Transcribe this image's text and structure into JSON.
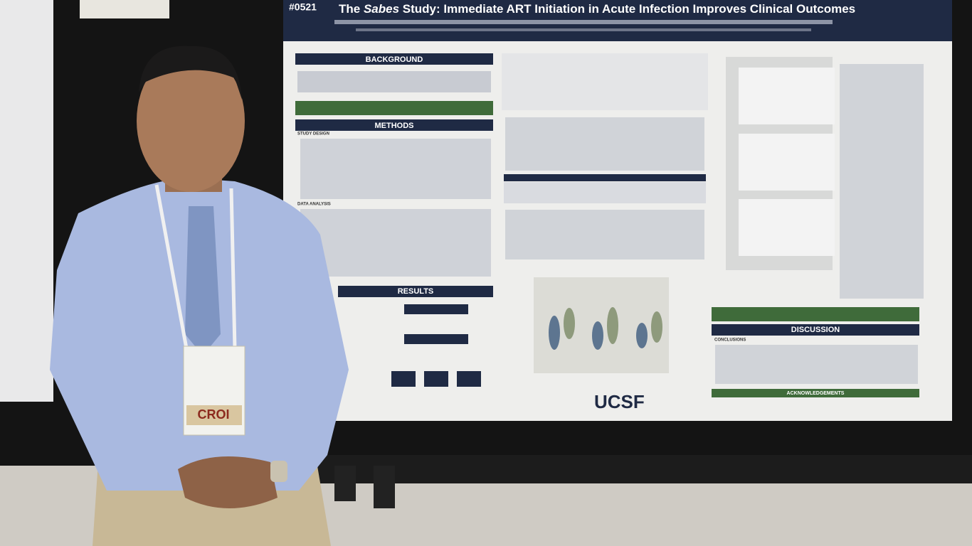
{
  "poster": {
    "number": "#0521",
    "title_parts": [
      "The ",
      "Sabes",
      " Study: Immediate ART Initiation in Acute Infection Improves Clinical Outcomes"
    ],
    "sections": [
      "BACKGROUND",
      "METHODS",
      "RESULTS",
      "DISCUSSION",
      "CONCLUSIONS",
      "ACKNOWLEDGEMENTS"
    ],
    "subheads": [
      "STUDY DESIGN",
      "DATA ANALYSIS"
    ],
    "logos": [
      "UCSF"
    ]
  },
  "badge": {
    "text": "CROI"
  }
}
